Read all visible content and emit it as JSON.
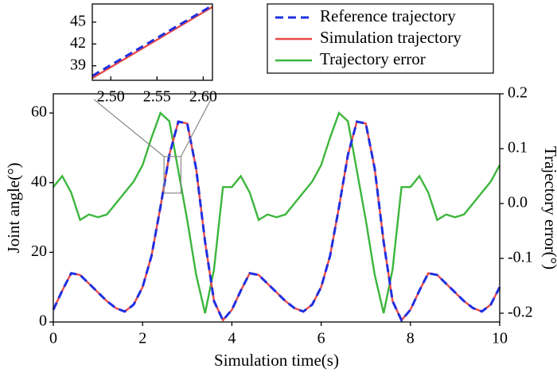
{
  "chart_data": [
    {
      "type": "line",
      "xlabel": "Simulation time(s)",
      "ylabel": "Joint angle(°)",
      "y2label": "Trajectory error(°)",
      "x": [
        0,
        0.2,
        0.4,
        0.6,
        0.8,
        1.0,
        1.2,
        1.4,
        1.6,
        1.8,
        2.0,
        2.2,
        2.4,
        2.6,
        2.8,
        3.0,
        3.2,
        3.4,
        3.6,
        3.8,
        4.0,
        4.2,
        4.4,
        4.6,
        4.8,
        5.0,
        5.2,
        5.4,
        5.6,
        5.8,
        6.0,
        6.2,
        6.4,
        6.6,
        6.8,
        7.0,
        7.2,
        7.4,
        7.6,
        7.8,
        8.0,
        8.2,
        8.4,
        8.6,
        8.8,
        9.0,
        9.2,
        9.4,
        9.6,
        9.8,
        10.0
      ],
      "series": [
        {
          "name": "Reference trajectory",
          "color": "#1f2fe0",
          "dash": true,
          "values": [
            3.5,
            9,
            14,
            13.5,
            11,
            8.5,
            6,
            4,
            3,
            5,
            10,
            19,
            33,
            48,
            57.5,
            57,
            44,
            23,
            6,
            0.5,
            3.5,
            9,
            14,
            13.5,
            11,
            8.5,
            6,
            4,
            3,
            5,
            10,
            19,
            33,
            48,
            57.5,
            57,
            44,
            23,
            6,
            0.5,
            3.5,
            9,
            14,
            13.5,
            11,
            8.5,
            6,
            4,
            3,
            5,
            10
          ]
        },
        {
          "name": "Simulation trajectory",
          "color": "#e84a4a",
          "values": [
            3.5,
            9,
            14,
            13.5,
            11,
            8.5,
            6,
            4,
            3,
            5,
            10,
            19,
            33,
            48,
            57.5,
            57,
            44,
            23,
            6,
            0.5,
            3.5,
            9,
            14,
            13.5,
            11,
            8.5,
            6,
            4,
            3,
            5,
            10,
            19,
            33,
            48,
            57.5,
            57,
            44,
            23,
            6,
            0.5,
            3.5,
            9,
            14,
            13.5,
            11,
            8.5,
            6,
            4,
            3,
            5,
            10
          ]
        },
        {
          "name": "Trajectory error",
          "color": "#3cb63c",
          "axis": "y2",
          "values": [
            0.03,
            0.05,
            0.02,
            -0.03,
            -0.02,
            -0.025,
            -0.02,
            0,
            0.02,
            0.04,
            0.07,
            0.12,
            0.165,
            0.15,
            0.06,
            -0.03,
            -0.13,
            -0.2,
            -0.12,
            0.03,
            0.03,
            0.05,
            0.02,
            -0.03,
            -0.02,
            -0.025,
            -0.02,
            0,
            0.02,
            0.04,
            0.07,
            0.12,
            0.165,
            0.15,
            0.06,
            -0.03,
            -0.13,
            -0.2,
            -0.12,
            0.03,
            0.03,
            0.05,
            0.02,
            -0.03,
            -0.02,
            -0.025,
            -0.02,
            0,
            0.02,
            0.04,
            0.07
          ]
        }
      ],
      "xlim": [
        0,
        10
      ],
      "xticks": [
        0,
        2,
        4,
        6,
        8,
        10
      ],
      "ylim": [
        0,
        65.5
      ],
      "yticks": [
        0,
        20,
        40,
        60
      ],
      "y2lim": [
        -0.216,
        0.2
      ],
      "y2ticks": [
        0.2,
        0.1,
        {
          "value": 0,
          "label": "0.0"
        },
        -0.1,
        -0.2
      ],
      "legend": "upper right"
    },
    {
      "type": "line",
      "x": [
        2.48,
        2.61
      ],
      "series": [
        {
          "color": "#e84a4a",
          "values": [
            37.3,
            47.1
          ]
        },
        {
          "color": "#1f2fe0",
          "dash": true,
          "values": [
            37.6,
            47.3
          ]
        }
      ],
      "xlim": [
        2.48,
        2.61
      ],
      "xticks": [
        {
          "value": 2.5,
          "label": "2.50"
        },
        2.55,
        {
          "value": 2.6,
          "label": "2.60"
        }
      ],
      "ylim": [
        37,
        47.5
      ],
      "yticks": [
        39,
        42,
        45
      ]
    }
  ]
}
